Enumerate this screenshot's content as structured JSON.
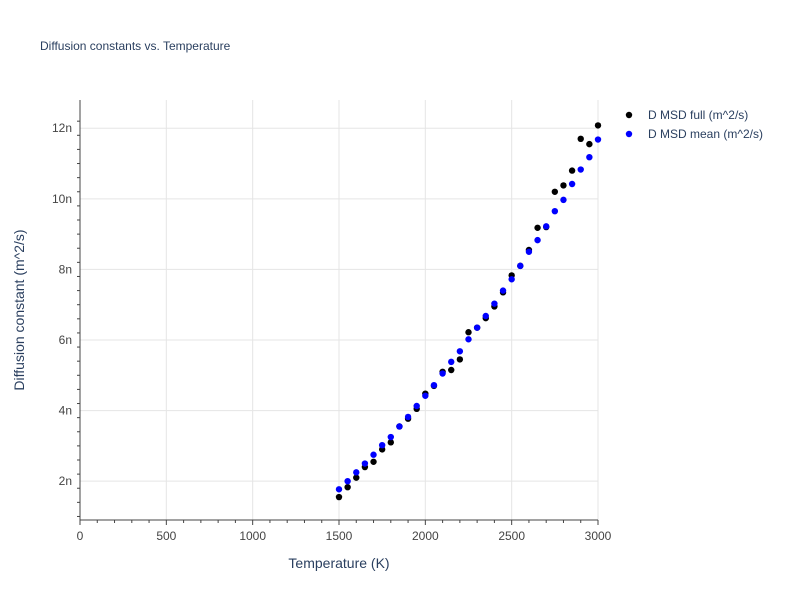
{
  "chart_data": {
    "type": "scatter",
    "title": "Diffusion constants vs. Temperature",
    "xlabel": "Temperature (K)",
    "ylabel": "Diffusion constant (m^2/s)",
    "xlim": [
      0,
      3000
    ],
    "ylim": [
      0.9,
      12.8
    ],
    "xticks": [
      0,
      500,
      1000,
      1500,
      2000,
      2500,
      3000
    ],
    "xtick_labels": [
      "0",
      "500",
      "1000",
      "1500",
      "2000",
      "2500",
      "3000"
    ],
    "yticks": [
      2,
      4,
      6,
      8,
      10,
      12
    ],
    "ytick_labels": [
      "2n",
      "4n",
      "6n",
      "8n",
      "10n",
      "12n"
    ],
    "grid": true,
    "legend_position": "top-right, outside plot",
    "series": [
      {
        "name": "D MSD full (m^2/s)",
        "color": "#000000",
        "x": [
          1500,
          1550,
          1600,
          1650,
          1700,
          1750,
          1800,
          1850,
          1900,
          1950,
          2000,
          2050,
          2100,
          2150,
          2200,
          2250,
          2300,
          2350,
          2400,
          2450,
          2500,
          2550,
          2600,
          2650,
          2700,
          2750,
          2800,
          2850,
          2900,
          2950,
          3000
        ],
        "y": [
          1.55,
          1.83,
          2.1,
          2.4,
          2.55,
          2.9,
          3.1,
          3.55,
          3.77,
          4.05,
          4.48,
          4.7,
          5.1,
          5.15,
          5.45,
          6.22,
          6.35,
          6.62,
          6.95,
          7.35,
          7.83,
          8.1,
          8.55,
          9.18,
          9.2,
          10.2,
          10.38,
          10.8,
          11.7,
          11.55,
          12.08
        ]
      },
      {
        "name": "D MSD mean (m^2/s)",
        "color": "#0000ff",
        "x": [
          1500,
          1550,
          1600,
          1650,
          1700,
          1750,
          1800,
          1850,
          1900,
          1950,
          2000,
          2050,
          2100,
          2150,
          2200,
          2250,
          2300,
          2350,
          2400,
          2450,
          2500,
          2550,
          2600,
          2650,
          2700,
          2750,
          2800,
          2850,
          2900,
          2950,
          3000
        ],
        "y": [
          1.77,
          2.0,
          2.25,
          2.5,
          2.75,
          3.02,
          3.25,
          3.55,
          3.82,
          4.13,
          4.42,
          4.72,
          5.05,
          5.38,
          5.68,
          6.02,
          6.35,
          6.68,
          7.03,
          7.4,
          7.72,
          8.1,
          8.5,
          8.83,
          9.22,
          9.65,
          9.97,
          10.42,
          10.83,
          11.18,
          11.68
        ]
      }
    ]
  }
}
